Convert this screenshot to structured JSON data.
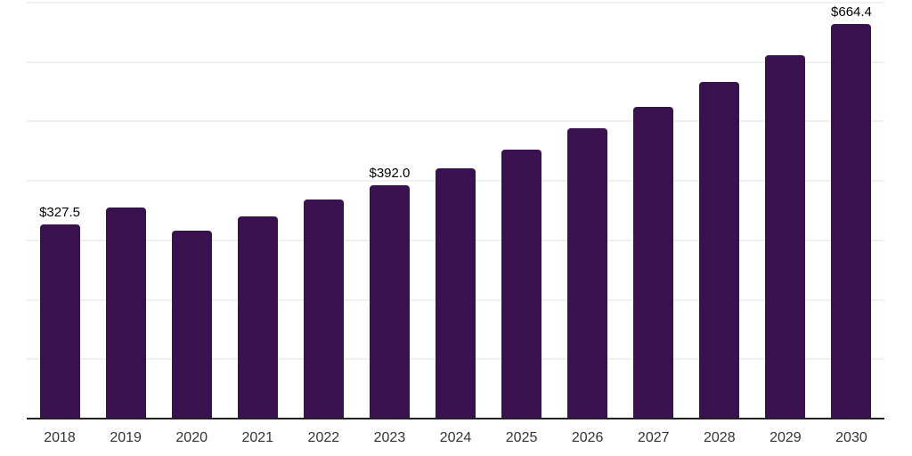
{
  "chart_data": {
    "type": "bar",
    "title": "",
    "xlabel": "",
    "ylabel": "",
    "categories": [
      "2018",
      "2019",
      "2020",
      "2021",
      "2022",
      "2023",
      "2024",
      "2025",
      "2026",
      "2027",
      "2028",
      "2029",
      "2030"
    ],
    "values": [
      327.5,
      356,
      316,
      341,
      369,
      392.0,
      421,
      453,
      488,
      524,
      566,
      612,
      664.4
    ],
    "value_labels": [
      "$327.5",
      null,
      null,
      null,
      null,
      "$392.0",
      null,
      null,
      null,
      null,
      null,
      null,
      "$664.4"
    ],
    "ylim": [
      0,
      700
    ],
    "gridline_step": 100,
    "grid": true,
    "legend": false,
    "y_tick_labels_visible": false,
    "colors": {
      "bar": "#38114E",
      "value_label": "#000000",
      "tick_label": "#333333",
      "gridline": "#f1f1f1",
      "axis_line": "#222222",
      "background": "#ffffff"
    }
  }
}
